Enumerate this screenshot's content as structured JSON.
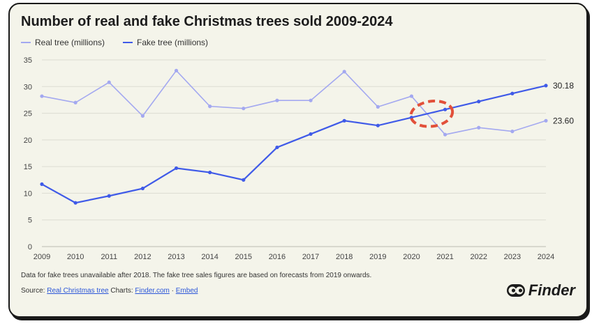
{
  "chart_data": {
    "type": "line",
    "title": "Number of real and fake Christmas trees sold 2009-2024",
    "x": [
      "2009",
      "2010",
      "2011",
      "2012",
      "2013",
      "2014",
      "2015",
      "2016",
      "2017",
      "2018",
      "2019",
      "2020",
      "2021",
      "2022",
      "2023",
      "2024"
    ],
    "ylim": [
      0,
      35
    ],
    "yticks": [
      "0",
      "5",
      "10",
      "15",
      "20",
      "25",
      "30",
      "35"
    ],
    "grid": true,
    "legend_position": "top-left",
    "series": [
      {
        "name": "Real tree (millions)",
        "color": "#a3a8f0",
        "values": [
          28.2,
          27.0,
          30.8,
          24.5,
          33.0,
          26.3,
          25.9,
          27.4,
          27.4,
          32.8,
          26.2,
          28.2,
          21.0,
          22.3,
          21.6,
          23.6
        ],
        "end_label": "23.60"
      },
      {
        "name": "Fake tree (millions)",
        "color": "#3f5ae8",
        "values": [
          11.7,
          8.2,
          9.5,
          10.9,
          14.7,
          13.9,
          12.5,
          18.6,
          21.1,
          23.6,
          22.7,
          24.2,
          25.7,
          27.2,
          28.7,
          30.18
        ],
        "end_label": "30.18"
      }
    ],
    "annotation": {
      "type": "dashed-ellipse",
      "color": "#e2503a",
      "at_x": "2020.6",
      "at_y": 24.9
    }
  },
  "footer": {
    "note": "Data for fake trees unavailable after 2018. The fake tree sales figures are based on forecasts from 2019 onwards.",
    "source_prefix": "Source: ",
    "source_link": "Real Christmas tree",
    "charts_prefix": " Charts: ",
    "charts_link": "Finder.com",
    "separator": " · ",
    "embed_link": "Embed"
  },
  "brand": {
    "name": "Finder",
    "icon": "eyes-icon"
  }
}
